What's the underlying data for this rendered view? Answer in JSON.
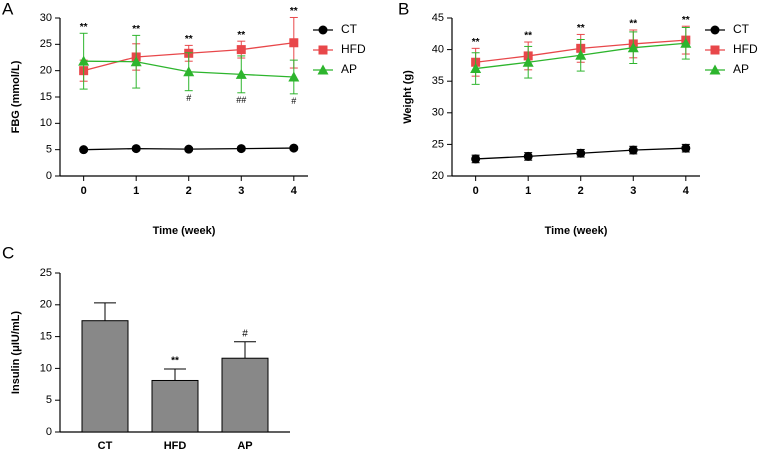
{
  "chart_data": [
    {
      "type": "line",
      "panel_label": "A",
      "x_label": "Time (week)",
      "y_label": "FBG (mmol/L)",
      "x": [
        0,
        1,
        2,
        3,
        4
      ],
      "xlim": [
        -0.45,
        4.27
      ],
      "xticks": [
        0,
        1,
        2,
        3,
        4
      ],
      "ylim": [
        0,
        30
      ],
      "yticks": [
        0,
        5,
        10,
        15,
        20,
        25,
        30
      ],
      "series": [
        {
          "name": "CT",
          "color": "#000000",
          "marker": "circle",
          "values": [
            5.0,
            5.2,
            5.1,
            5.2,
            5.3
          ],
          "errors": [
            0.3,
            0.3,
            0.3,
            0.3,
            0.3
          ]
        },
        {
          "name": "HFD",
          "color": "#e8474a",
          "marker": "square",
          "values": [
            20.0,
            22.6,
            23.3,
            24.0,
            25.3
          ],
          "errors": [
            2.0,
            2.5,
            1.5,
            1.6,
            4.8
          ],
          "labels_above": [
            "**",
            "**",
            "**",
            "**",
            "**"
          ]
        },
        {
          "name": "AP",
          "color": "#2db52d",
          "marker": "triangle",
          "values": [
            21.8,
            21.7,
            19.8,
            19.3,
            18.8
          ],
          "errors": [
            5.3,
            5.0,
            3.6,
            3.5,
            3.2
          ],
          "labels_below": [
            null,
            null,
            "#",
            "##",
            "#"
          ]
        }
      ]
    },
    {
      "type": "line",
      "panel_label": "B",
      "x_label": "Time (week)",
      "y_label": "Weight (g)",
      "x": [
        0,
        1,
        2,
        3,
        4
      ],
      "xlim": [
        -0.45,
        4.27
      ],
      "xticks": [
        0,
        1,
        2,
        3,
        4
      ],
      "ylim": [
        20,
        45
      ],
      "yticks": [
        20,
        25,
        30,
        35,
        40,
        45
      ],
      "series": [
        {
          "name": "CT",
          "color": "#000000",
          "marker": "circle",
          "values": [
            22.7,
            23.1,
            23.6,
            24.1,
            24.4
          ],
          "errors": [
            0.6,
            0.6,
            0.6,
            0.6,
            0.6
          ]
        },
        {
          "name": "HFD",
          "color": "#e8474a",
          "marker": "square",
          "values": [
            38.0,
            39.0,
            40.2,
            40.9,
            41.5
          ],
          "errors": [
            2.2,
            2.2,
            2.2,
            2.2,
            2.2
          ],
          "labels_above": [
            "**",
            "**",
            "**",
            "**",
            "**"
          ]
        },
        {
          "name": "AP",
          "color": "#2db52d",
          "marker": "triangle",
          "values": [
            37.0,
            38.0,
            39.1,
            40.3,
            41.0
          ],
          "errors": [
            2.5,
            2.5,
            2.5,
            2.5,
            2.5
          ]
        }
      ]
    },
    {
      "type": "bar",
      "panel_label": "C",
      "y_label": "Insulin (μIU/mL)",
      "categories": [
        "CT",
        "HFD",
        "AP"
      ],
      "values": [
        17.5,
        8.1,
        11.6
      ],
      "errors": [
        2.8,
        1.8,
        2.6
      ],
      "labels_above": [
        null,
        "**",
        "#"
      ],
      "color": "#888888",
      "ylim": [
        0,
        25
      ],
      "yticks": [
        0,
        5,
        10,
        15,
        20,
        25
      ]
    }
  ]
}
